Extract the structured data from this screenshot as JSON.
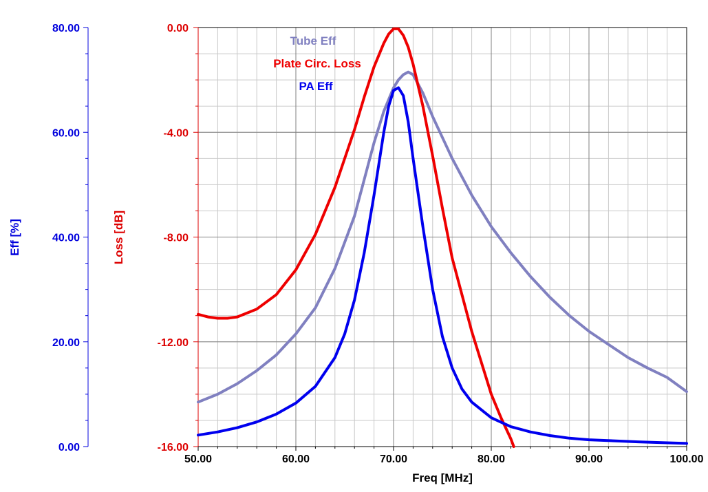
{
  "chart_data": {
    "type": "line",
    "title": "",
    "xlabel": "Freq [MHz]",
    "xlim": [
      50,
      100
    ],
    "x_ticks": [
      "50.00",
      "60.00",
      "70.00",
      "80.00",
      "90.00",
      "100.00"
    ],
    "grid": true,
    "legend_placement": "top-center",
    "axes": {
      "eff": {
        "label": "Eff [%]",
        "color": "#0000dd",
        "ylim": [
          0,
          80
        ],
        "ticks": [
          "0.00",
          "20.00",
          "40.00",
          "60.00",
          "80.00"
        ]
      },
      "loss": {
        "label": "Loss [dB]",
        "color": "#dd0000",
        "ylim": [
          -16,
          0
        ],
        "ticks": [
          "-16.00",
          "-12.00",
          "-8.00",
          "-4.00",
          "0.00"
        ]
      }
    },
    "series": [
      {
        "name": "Tube Eff",
        "axis": "eff",
        "color": "#8080c0",
        "x": [
          50,
          52,
          54,
          56,
          58,
          60,
          62,
          64,
          66,
          67,
          68,
          69,
          70,
          70.5,
          71,
          71.5,
          72,
          73,
          74,
          76,
          78,
          80,
          82,
          84,
          86,
          88,
          90,
          92,
          94,
          96,
          98,
          100
        ],
        "y": [
          8.5,
          10,
          12,
          14.5,
          17.5,
          21.5,
          26.5,
          34,
          44,
          51,
          58,
          64,
          68.5,
          70,
          71,
          71.5,
          71,
          67.5,
          63,
          55,
          48,
          42,
          37,
          32.5,
          28.5,
          25,
          22,
          19.5,
          17,
          15,
          13.2,
          10.5
        ]
      },
      {
        "name": "Plate Circ. Loss",
        "axis": "loss",
        "color": "#ee0000",
        "x": [
          50,
          51,
          52,
          53,
          54,
          56,
          58,
          60,
          62,
          64,
          66,
          67,
          68,
          69,
          69.5,
          70,
          70.5,
          71,
          71.5,
          72,
          73,
          74,
          75,
          76,
          78,
          80,
          81,
          82,
          82.3
        ],
        "y": [
          -10.95,
          -11.05,
          -11.1,
          -11.1,
          -11.05,
          -10.75,
          -10.2,
          -9.25,
          -7.9,
          -6.1,
          -3.9,
          -2.65,
          -1.5,
          -0.6,
          -0.25,
          -0.05,
          -0.05,
          -0.3,
          -0.75,
          -1.4,
          -3.0,
          -4.9,
          -6.9,
          -8.8,
          -11.6,
          -14.0,
          -14.9,
          -15.7,
          -16.0
        ]
      },
      {
        "name": "PA Eff",
        "axis": "eff",
        "color": "#0000ee",
        "x": [
          50,
          52,
          54,
          56,
          58,
          60,
          62,
          64,
          65,
          66,
          67,
          68,
          69,
          69.5,
          70,
          70.5,
          71,
          71.5,
          72,
          73,
          74,
          75,
          76,
          77,
          78,
          80,
          82,
          84,
          86,
          88,
          90,
          95,
          100
        ],
        "y": [
          2.2,
          2.8,
          3.6,
          4.7,
          6.2,
          8.3,
          11.5,
          17,
          21.5,
          28,
          37,
          48,
          60,
          65,
          68,
          68.5,
          67,
          62,
          55,
          42,
          30,
          21,
          15,
          11,
          8.5,
          5.5,
          3.8,
          2.8,
          2.1,
          1.6,
          1.3,
          0.9,
          0.6
        ]
      }
    ]
  }
}
